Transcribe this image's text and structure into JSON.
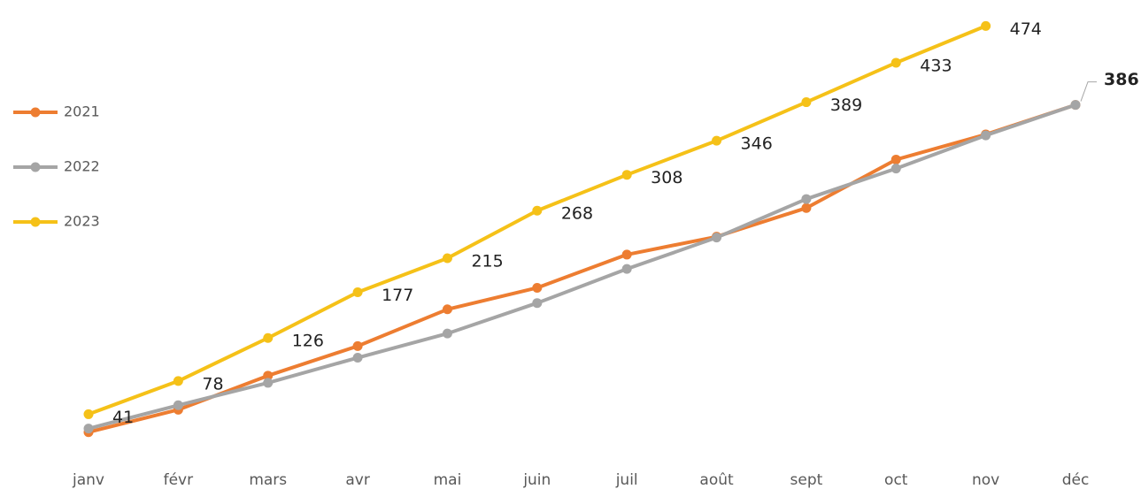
{
  "chart_data": {
    "type": "line",
    "categories": [
      "janv",
      "févr",
      "mars",
      "avr",
      "mai",
      "juin",
      "juil",
      "août",
      "sept",
      "oct",
      "nov",
      "déc"
    ],
    "series": [
      {
        "name": "2021",
        "color": "#ED7D31",
        "values": [
          21,
          46,
          84,
          117,
          158,
          182,
          219,
          239,
          271,
          325,
          353,
          386
        ],
        "data_labels": "none"
      },
      {
        "name": "2022",
        "color": "#A5A5A5",
        "values": [
          25,
          51,
          76,
          104,
          131,
          165,
          203,
          238,
          281,
          315,
          352,
          386
        ],
        "data_labels": "last"
      },
      {
        "name": "2023",
        "color": "#F5C118",
        "values": [
          41,
          78,
          126,
          177,
          215,
          268,
          308,
          346,
          389,
          433,
          474,
          null
        ],
        "data_labels": "all"
      }
    ],
    "ylim": [
      0,
      500
    ],
    "legend": "left",
    "grid": false
  }
}
